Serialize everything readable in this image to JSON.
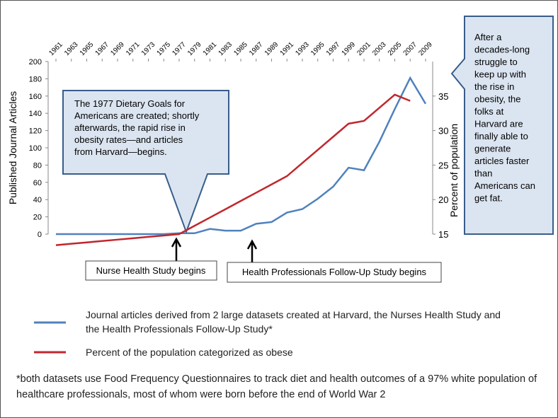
{
  "chart_data": {
    "type": "line",
    "y_label": "Published Journal Articles",
    "y2_label": "Percent of population",
    "x": [
      1961,
      1963,
      1965,
      1967,
      1969,
      1971,
      1973,
      1975,
      1977,
      1979,
      1981,
      1983,
      1985,
      1987,
      1989,
      1991,
      1993,
      1995,
      1997,
      1999,
      2001,
      2003,
      2005,
      2007,
      2009
    ],
    "xticks": [
      1961,
      1963,
      1965,
      1967,
      1969,
      1971,
      1973,
      1975,
      1977,
      1979,
      1981,
      1983,
      1985,
      1987,
      1989,
      1991,
      1993,
      1995,
      1997,
      1999,
      2001,
      2003,
      2005,
      2007,
      2009
    ],
    "xlim": [
      1961,
      2009
    ],
    "ylim": [
      0,
      200
    ],
    "yticks": [
      0,
      20,
      40,
      60,
      80,
      100,
      120,
      140,
      160,
      180,
      200
    ],
    "y2lim": [
      15,
      40
    ],
    "y2ticks": [
      15,
      20,
      25,
      30,
      35
    ],
    "series": [
      {
        "name": "Journal articles derived from 2 large datasets created at Harvard, the Nurses Health Study and the Health Professionals  Follow-Up Study*",
        "color": "#4f81bd",
        "values": [
          0,
          0,
          0,
          0,
          0,
          0,
          0,
          0,
          1,
          1,
          6,
          4,
          4,
          12,
          14,
          25,
          29,
          41,
          55,
          77,
          74,
          107,
          145,
          181,
          151
        ]
      },
      {
        "name": "Percent of the population categorized as obese",
        "color": "#c0272d",
        "axis": "y2",
        "values": [
          13.4,
          13.6,
          13.8,
          14.0,
          14.2,
          14.4,
          14.6,
          14.8,
          15.0,
          16.2,
          17.4,
          18.6,
          19.8,
          21.0,
          22.2,
          23.4,
          25.3,
          27.2,
          29.1,
          31.0,
          31.4,
          33.3,
          35.2,
          34.3,
          null
        ]
      }
    ],
    "annotations": {
      "callout_left": [
        "The 1977 Dietary Goals for",
        "Americans are created; shortly",
        "afterwards, the rapid rise in",
        "obesity rates—and articles",
        "from Harvard—begins."
      ],
      "callout_right": [
        "After a",
        "decades-long",
        "struggle to",
        "keep up with",
        "the rise in",
        "obesity, the",
        "folks at",
        "Harvard are",
        "finally able to",
        "generate",
        "articles faster",
        "than",
        "Americans can",
        "get fat."
      ],
      "event_1": "Nurse Health Study begins",
      "event_2": "Health Professionals Follow-Up Study begins",
      "footnote": "*both datasets use Food Frequency Questionnaires to track diet and health outcomes of a 97% white population of healthcare professionals, most of whom were born before the end of World War 2"
    }
  }
}
